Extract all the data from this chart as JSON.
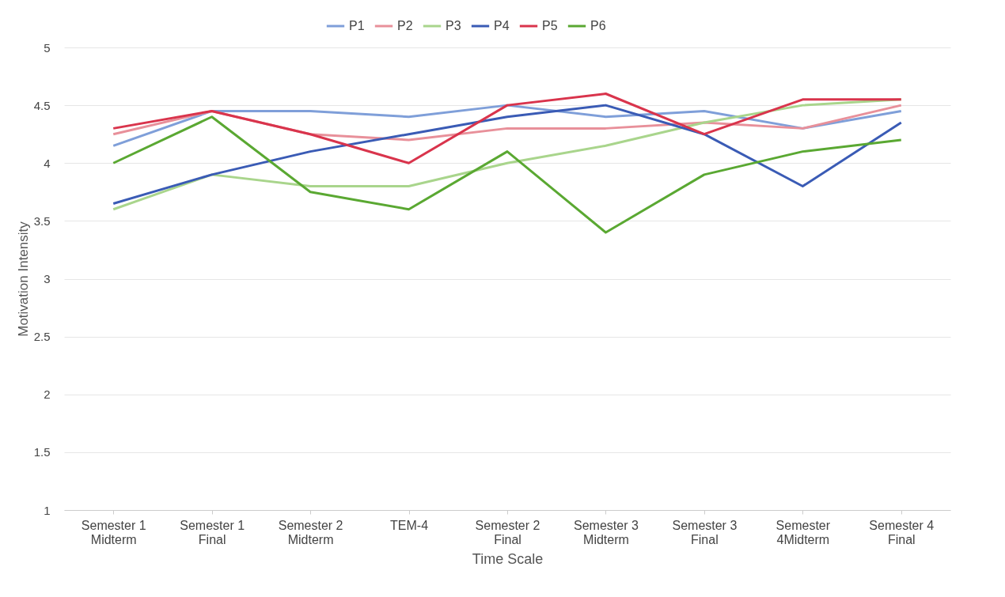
{
  "chart_data": {
    "type": "line",
    "xlabel": "Time Scale",
    "ylabel": "Motivation Intensity",
    "categories": [
      "Semester 1 Midterm",
      "Semester 1 Final",
      "Semester 2 Midterm",
      "TEM-4",
      "Semester 2 Final",
      "Semester 3 Midterm",
      "Semester 3 Final",
      "Semester 4Midterm",
      "Semester 4 Final"
    ],
    "series": [
      {
        "name": "P1",
        "color": "#7f9fd9",
        "values": [
          4.15,
          4.45,
          4.45,
          4.4,
          4.5,
          4.4,
          4.45,
          4.3,
          4.45
        ]
      },
      {
        "name": "P2",
        "color": "#e8909a",
        "values": [
          4.25,
          4.45,
          4.25,
          4.2,
          4.3,
          4.3,
          4.35,
          4.3,
          4.5
        ]
      },
      {
        "name": "P3",
        "color": "#a9d58c",
        "values": [
          3.6,
          3.9,
          3.8,
          3.8,
          4.0,
          4.15,
          4.35,
          4.5,
          4.55
        ]
      },
      {
        "name": "P4",
        "color": "#3a5bb5",
        "values": [
          3.65,
          3.9,
          4.1,
          4.25,
          4.4,
          4.5,
          4.25,
          3.8,
          4.35
        ]
      },
      {
        "name": "P5",
        "color": "#d9344c",
        "values": [
          4.3,
          4.45,
          4.25,
          4.0,
          4.5,
          4.6,
          4.25,
          4.55,
          4.55
        ]
      },
      {
        "name": "P6",
        "color": "#5aa832",
        "values": [
          4.0,
          4.4,
          3.75,
          3.6,
          4.1,
          3.4,
          3.9,
          4.1,
          4.2
        ]
      }
    ],
    "ylim": [
      1,
      5
    ],
    "yticks": [
      1,
      1.5,
      2,
      2.5,
      3,
      3.5,
      4,
      4.5,
      5
    ],
    "grid": "y",
    "legend": "top",
    "marker": "none",
    "line_style": "solid"
  }
}
